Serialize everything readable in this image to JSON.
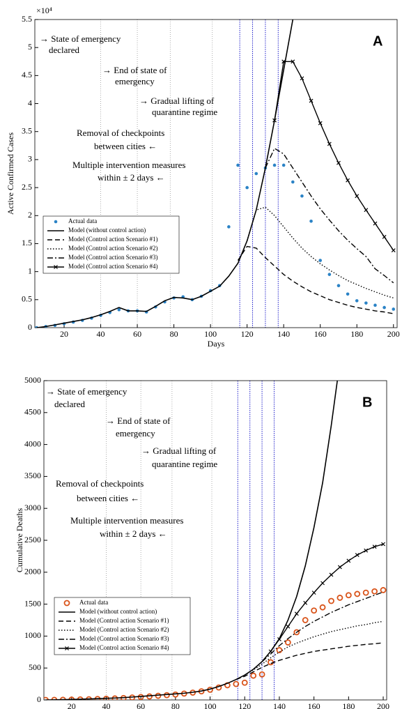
{
  "chart_data": [
    {
      "type": "line",
      "panel_label": "A",
      "xlabel": "Days",
      "ylabel": "Active Confirmed Cases",
      "y_scale_label": "×10⁴",
      "xlim": [
        4,
        202
      ],
      "ylim": [
        0,
        5.5
      ],
      "xticks": [
        20,
        40,
        60,
        80,
        100,
        120,
        140,
        160,
        180,
        200
      ],
      "yticks": [
        0,
        0.5,
        1,
        1.5,
        2,
        2.5,
        3,
        3.5,
        4,
        4.5,
        5,
        5.5
      ],
      "event_days": [
        40,
        60,
        78,
        101
      ],
      "intervention_days": [
        116,
        123,
        130,
        137
      ],
      "legend": "lower left",
      "annotations": [
        "→ State of emergency",
        "declared",
        "→ End of state of",
        "emergency",
        "→ Gradual lifting of",
        "quarantine regime",
        "Removal of checkpoints",
        "between cities     ←",
        "Multiple intervention measures",
        "within    ± 2 days  ←"
      ],
      "x": [
        5,
        10,
        15,
        20,
        25,
        30,
        35,
        40,
        45,
        50,
        55,
        60,
        65,
        70,
        75,
        80,
        85,
        90,
        95,
        100,
        105,
        110,
        115,
        120,
        125,
        130,
        135,
        140,
        145,
        150,
        155,
        160,
        165,
        170,
        175,
        180,
        185,
        190,
        195,
        200
      ],
      "series": [
        {
          "name": "Actual data",
          "color": "#2b83c6",
          "style": "none",
          "marker": "dot",
          "values": [
            0,
            0.02,
            0.04,
            0.07,
            0.1,
            0.13,
            0.17,
            0.22,
            0.27,
            0.32,
            0.3,
            0.3,
            0.28,
            0.37,
            0.46,
            0.53,
            0.55,
            0.5,
            0.56,
            0.66,
            0.75,
            1.8,
            2.9,
            2.5,
            2.75,
            2.85,
            2.9,
            2.9,
            2.6,
            2.35,
            1.9,
            1.2,
            0.95,
            0.75,
            0.6,
            0.48,
            0.44,
            0.4,
            0.36,
            0.33
          ]
        },
        {
          "name": "Model (without control action)",
          "color": "#000000",
          "style": "solid",
          "marker": "none",
          "values": [
            0,
            0.02,
            0.05,
            0.08,
            0.11,
            0.14,
            0.18,
            0.23,
            0.29,
            0.36,
            0.3,
            0.3,
            0.29,
            0.38,
            0.48,
            0.54,
            0.53,
            0.5,
            0.56,
            0.65,
            0.74,
            0.92,
            1.15,
            1.55,
            2.1,
            2.85,
            3.7,
            4.6,
            5.5,
            6.8,
            null,
            null,
            null,
            null,
            null,
            null,
            null,
            null,
            null,
            null
          ]
        },
        {
          "name": "Model (Control action Scenario #1)",
          "color": "#000000",
          "style": "dashed",
          "marker": "none",
          "values": [
            null,
            null,
            null,
            null,
            null,
            null,
            null,
            null,
            null,
            null,
            null,
            null,
            null,
            null,
            null,
            null,
            null,
            null,
            null,
            null,
            null,
            null,
            1.2,
            1.45,
            1.42,
            1.25,
            1.1,
            0.95,
            0.83,
            0.73,
            0.64,
            0.57,
            0.5,
            0.45,
            0.4,
            0.36,
            0.33,
            0.3,
            0.28,
            0.25
          ]
        },
        {
          "name": "Model (Control action Scenario #2)",
          "color": "#000000",
          "style": "dotted",
          "marker": "none",
          "values": [
            null,
            null,
            null,
            null,
            null,
            null,
            null,
            null,
            null,
            null,
            null,
            null,
            null,
            null,
            null,
            null,
            null,
            null,
            null,
            null,
            null,
            null,
            null,
            1.55,
            2.1,
            2.15,
            2.0,
            1.8,
            1.6,
            1.42,
            1.27,
            1.14,
            1.03,
            0.93,
            0.84,
            0.77,
            0.7,
            0.64,
            0.58,
            0.53
          ]
        },
        {
          "name": "Model (Control action Scenario #3)",
          "color": "#000000",
          "style": "dashdot",
          "marker": "none",
          "values": [
            null,
            null,
            null,
            null,
            null,
            null,
            null,
            null,
            null,
            null,
            null,
            null,
            null,
            null,
            null,
            null,
            null,
            null,
            null,
            null,
            null,
            null,
            null,
            null,
            null,
            2.85,
            3.2,
            3.1,
            2.85,
            2.6,
            2.35,
            2.12,
            1.92,
            1.73,
            1.56,
            1.41,
            1.27,
            1.05,
            0.93,
            0.8
          ]
        },
        {
          "name": "Model (Control action Scenario #4)",
          "color": "#000000",
          "style": "solid",
          "marker": "x",
          "values": [
            null,
            null,
            null,
            null,
            null,
            null,
            null,
            null,
            null,
            null,
            null,
            null,
            null,
            null,
            null,
            null,
            null,
            null,
            null,
            null,
            null,
            null,
            null,
            null,
            null,
            null,
            3.7,
            4.75,
            4.75,
            4.45,
            4.05,
            3.65,
            3.28,
            2.94,
            2.63,
            2.35,
            2.1,
            1.86,
            1.62,
            1.38
          ]
        }
      ]
    },
    {
      "type": "line",
      "panel_label": "B",
      "xlabel": "Days",
      "ylabel": "Cumulative Deaths",
      "xlim": [
        4,
        202
      ],
      "ylim": [
        0,
        5000
      ],
      "xticks": [
        20,
        40,
        60,
        80,
        100,
        120,
        140,
        160,
        180,
        200
      ],
      "yticks": [
        0,
        500,
        1000,
        1500,
        2000,
        2500,
        3000,
        3500,
        4000,
        4500,
        5000
      ],
      "event_days": [
        40,
        60,
        78,
        101
      ],
      "intervention_days": [
        116,
        123,
        130,
        137
      ],
      "legend": "lower left",
      "annotations": [
        "→ State of emergency",
        "declared",
        "→ End of state of",
        "emergency",
        "→ Gradual lifting of",
        "quarantine regime",
        "Removal of checkpoints",
        "between cities     ←",
        "Multiple intervention measures",
        "within    ± 2 days  ←"
      ],
      "x": [
        5,
        10,
        15,
        20,
        25,
        30,
        35,
        40,
        45,
        50,
        55,
        60,
        65,
        70,
        75,
        80,
        85,
        90,
        95,
        100,
        105,
        110,
        115,
        120,
        125,
        130,
        135,
        140,
        145,
        150,
        155,
        160,
        165,
        170,
        175,
        180,
        185,
        190,
        195,
        200
      ],
      "series": [
        {
          "name": "Actual data",
          "color": "#d95319",
          "style": "none",
          "marker": "circle",
          "values": [
            0,
            1,
            3,
            5,
            8,
            11,
            15,
            19,
            24,
            30,
            38,
            46,
            55,
            65,
            75,
            85,
            100,
            115,
            135,
            160,
            195,
            230,
            250,
            270,
            380,
            400,
            590,
            780,
            900,
            1060,
            1250,
            1400,
            1450,
            1550,
            1600,
            1640,
            1660,
            1680,
            1700,
            1720
          ]
        },
        {
          "name": "Model (without control action)",
          "color": "#000000",
          "style": "solid",
          "marker": "none",
          "values": [
            0,
            2,
            5,
            8,
            12,
            16,
            20,
            25,
            30,
            36,
            45,
            55,
            65,
            75,
            85,
            95,
            105,
            120,
            140,
            170,
            210,
            260,
            320,
            390,
            480,
            600,
            760,
            960,
            1250,
            1620,
            2100,
            2700,
            3400,
            4300,
            5300,
            null,
            null,
            null,
            null,
            null
          ]
        },
        {
          "name": "Model (Control action Scenario #1)",
          "color": "#000000",
          "style": "dashed",
          "marker": "none",
          "values": [
            null,
            null,
            null,
            null,
            null,
            null,
            null,
            null,
            null,
            null,
            null,
            null,
            null,
            null,
            null,
            null,
            null,
            null,
            null,
            null,
            null,
            null,
            320,
            370,
            440,
            510,
            570,
            620,
            660,
            700,
            730,
            760,
            780,
            800,
            820,
            840,
            855,
            870,
            880,
            895
          ]
        },
        {
          "name": "Model (Control action Scenario #2)",
          "color": "#000000",
          "style": "dotted",
          "marker": "none",
          "values": [
            null,
            null,
            null,
            null,
            null,
            null,
            null,
            null,
            null,
            null,
            null,
            null,
            null,
            null,
            null,
            null,
            null,
            null,
            null,
            null,
            null,
            null,
            null,
            390,
            470,
            560,
            660,
            750,
            830,
            890,
            940,
            990,
            1030,
            1070,
            1100,
            1130,
            1160,
            1180,
            1210,
            1230
          ]
        },
        {
          "name": "Model (Control action Scenario #3)",
          "color": "#000000",
          "style": "dashdot",
          "marker": "none",
          "values": [
            null,
            null,
            null,
            null,
            null,
            null,
            null,
            null,
            null,
            null,
            null,
            null,
            null,
            null,
            null,
            null,
            null,
            null,
            null,
            null,
            null,
            null,
            null,
            null,
            null,
            600,
            720,
            850,
            960,
            1060,
            1150,
            1230,
            1300,
            1370,
            1430,
            1490,
            1540,
            1590,
            1640,
            1690
          ]
        },
        {
          "name": "Model (Control action Scenario #4)",
          "color": "#000000",
          "style": "solid",
          "marker": "x",
          "values": [
            null,
            null,
            null,
            null,
            null,
            null,
            null,
            null,
            null,
            null,
            null,
            null,
            null,
            null,
            null,
            null,
            null,
            null,
            null,
            null,
            null,
            null,
            null,
            null,
            null,
            null,
            760,
            950,
            1150,
            1350,
            1520,
            1680,
            1830,
            1960,
            2080,
            2180,
            2270,
            2340,
            2400,
            2440
          ]
        }
      ]
    }
  ]
}
